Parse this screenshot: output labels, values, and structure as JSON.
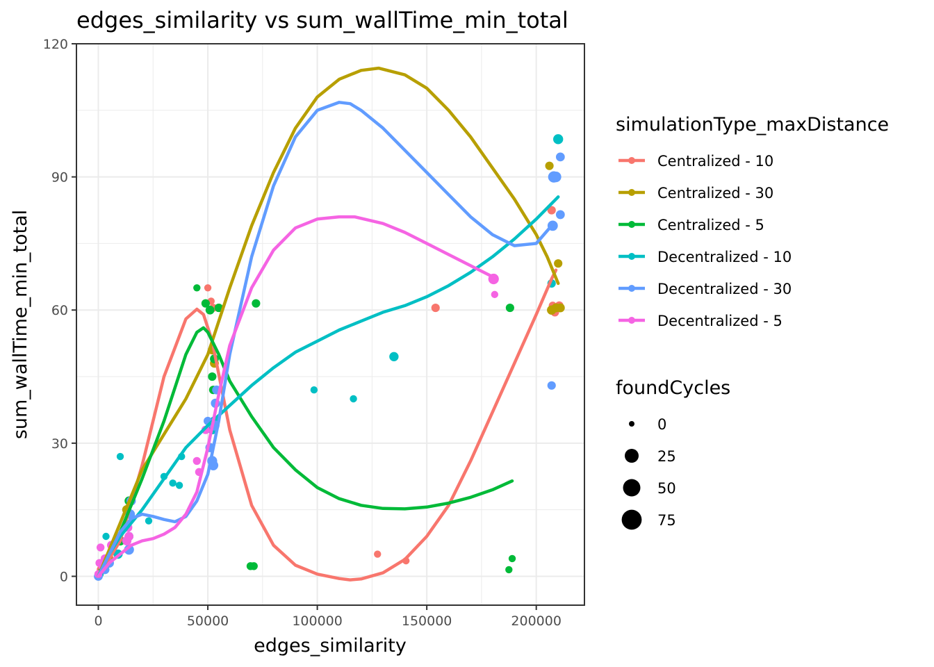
{
  "chart_data": {
    "type": "scatter",
    "title": "edges_similarity  vs  sum_wallTime_min_total",
    "xlabel": "edges_similarity",
    "ylabel": "sum_wallTime_min_total",
    "xlim": [
      -10000,
      222000
    ],
    "ylim": [
      -6.5,
      120
    ],
    "x_ticks": [
      0,
      50000,
      100000,
      150000,
      200000
    ],
    "x_tick_labels": [
      "0",
      "50000",
      "100000",
      "150000",
      "200000"
    ],
    "y_ticks": [
      0,
      30,
      60,
      90,
      120
    ],
    "y_tick_labels": [
      "0",
      "30",
      "60",
      "90",
      "120"
    ],
    "grid": true,
    "legend_position": "right",
    "color_legend": {
      "title": "simulationType_maxDistance",
      "entries": [
        {
          "name": "Centralized - 10",
          "color": "#F8766D"
        },
        {
          "name": "Centralized - 30",
          "color": "#B79F00"
        },
        {
          "name": "Centralized - 5",
          "color": "#00BA38"
        },
        {
          "name": "Decentralized - 10",
          "color": "#00BFC4"
        },
        {
          "name": "Decentralized - 30",
          "color": "#619CFF"
        },
        {
          "name": "Decentralized - 5",
          "color": "#F564E3"
        }
      ]
    },
    "size_legend": {
      "title": "foundCycles",
      "values": [
        0,
        25,
        50,
        75
      ],
      "labels": [
        "0",
        "25",
        "50",
        "75"
      ]
    },
    "series": [
      {
        "name": "Centralized - 10",
        "color": "#F8766D",
        "points": [
          [
            300,
            0.5,
            2
          ],
          [
            1200,
            1.5,
            3
          ],
          [
            3000,
            3,
            4
          ],
          [
            5000,
            4,
            4
          ],
          [
            50000,
            65,
            1
          ],
          [
            51500,
            62,
            1
          ],
          [
            52500,
            60.5,
            2
          ],
          [
            127500,
            5,
            1
          ],
          [
            140500,
            3.5,
            1
          ],
          [
            154000,
            60.5,
            3
          ],
          [
            207000,
            82.5,
            3
          ],
          [
            207500,
            61,
            2
          ],
          [
            208500,
            59.5,
            3
          ],
          [
            210500,
            61,
            3
          ]
        ],
        "smooth": [
          [
            0,
            0
          ],
          [
            10000,
            8
          ],
          [
            20000,
            25
          ],
          [
            30000,
            45
          ],
          [
            40000,
            58
          ],
          [
            45000,
            60.2
          ],
          [
            48000,
            59
          ],
          [
            52000,
            53
          ],
          [
            60000,
            33
          ],
          [
            70000,
            16
          ],
          [
            80000,
            7
          ],
          [
            90000,
            2.5
          ],
          [
            100000,
            0.5
          ],
          [
            110000,
            -0.5
          ],
          [
            115000,
            -0.8
          ],
          [
            120000,
            -0.6
          ],
          [
            130000,
            0.8
          ],
          [
            140000,
            3.8
          ],
          [
            150000,
            9
          ],
          [
            160000,
            16
          ],
          [
            170000,
            26
          ],
          [
            180000,
            37
          ],
          [
            190000,
            48
          ],
          [
            200000,
            59
          ],
          [
            207000,
            67
          ],
          [
            209000,
            69
          ]
        ]
      },
      {
        "name": "Centralized - 30",
        "color": "#B79F00",
        "points": [
          [
            500,
            0.5,
            3
          ],
          [
            2500,
            2,
            5
          ],
          [
            5000,
            3.5,
            4
          ],
          [
            13000,
            15,
            5
          ],
          [
            52000,
            51,
            4
          ],
          [
            53000,
            48,
            4
          ],
          [
            55000,
            60.5,
            3
          ],
          [
            206000,
            92.5,
            3
          ],
          [
            207000,
            60,
            5
          ],
          [
            209000,
            60.5,
            4
          ],
          [
            210000,
            70.5,
            3
          ],
          [
            211000,
            60.5,
            4
          ]
        ],
        "smooth": [
          [
            0,
            0
          ],
          [
            10000,
            12
          ],
          [
            20000,
            24
          ],
          [
            30000,
            32
          ],
          [
            40000,
            40
          ],
          [
            50000,
            50
          ],
          [
            60000,
            65
          ],
          [
            70000,
            79
          ],
          [
            80000,
            91
          ],
          [
            90000,
            101
          ],
          [
            100000,
            108
          ],
          [
            110000,
            112
          ],
          [
            120000,
            114
          ],
          [
            128000,
            114.5
          ],
          [
            140000,
            113
          ],
          [
            150000,
            110
          ],
          [
            160000,
            105
          ],
          [
            170000,
            99
          ],
          [
            180000,
            92
          ],
          [
            190000,
            85
          ],
          [
            200000,
            77
          ],
          [
            205000,
            72
          ],
          [
            210000,
            66
          ]
        ]
      },
      {
        "name": "Centralized - 5",
        "color": "#00BA38",
        "points": [
          [
            500,
            0.5,
            2
          ],
          [
            2000,
            1.5,
            3
          ],
          [
            5000,
            3,
            4
          ],
          [
            10000,
            8,
            5
          ],
          [
            14000,
            17,
            4
          ],
          [
            45000,
            65,
            1
          ],
          [
            49000,
            61.5,
            3
          ],
          [
            51000,
            60,
            4
          ],
          [
            52000,
            45,
            3
          ],
          [
            52500,
            42,
            3
          ],
          [
            53000,
            49,
            4
          ],
          [
            55000,
            60.5,
            3
          ],
          [
            72000,
            61.5,
            3
          ],
          [
            69500,
            2.3,
            2
          ],
          [
            71000,
            2.3,
            2
          ],
          [
            187500,
            1.5,
            1
          ],
          [
            189000,
            4,
            1
          ],
          [
            188000,
            60.5,
            3
          ]
        ],
        "smooth": [
          [
            0,
            0
          ],
          [
            10000,
            10
          ],
          [
            20000,
            22
          ],
          [
            30000,
            35
          ],
          [
            40000,
            50
          ],
          [
            45000,
            55
          ],
          [
            48000,
            56
          ],
          [
            50000,
            55
          ],
          [
            55000,
            50
          ],
          [
            60000,
            44
          ],
          [
            70000,
            36
          ],
          [
            80000,
            29
          ],
          [
            90000,
            24
          ],
          [
            100000,
            20
          ],
          [
            110000,
            17.5
          ],
          [
            120000,
            16
          ],
          [
            130000,
            15.3
          ],
          [
            140000,
            15.2
          ],
          [
            150000,
            15.6
          ],
          [
            160000,
            16.5
          ],
          [
            170000,
            17.8
          ],
          [
            180000,
            19.5
          ],
          [
            189000,
            21.5
          ]
        ]
      },
      {
        "name": "Decentralized - 10",
        "color": "#00BFC4",
        "points": [
          [
            500,
            0.5,
            3
          ],
          [
            3000,
            1.5,
            4
          ],
          [
            3500,
            9,
            1
          ],
          [
            9000,
            5,
            5
          ],
          [
            10000,
            27,
            1
          ],
          [
            14000,
            9,
            4
          ],
          [
            23000,
            12.5,
            1
          ],
          [
            30000,
            22.5,
            1
          ],
          [
            34000,
            21,
            1
          ],
          [
            37000,
            20.5,
            1
          ],
          [
            38000,
            27,
            1
          ],
          [
            52000,
            33,
            4
          ],
          [
            53000,
            35,
            5
          ],
          [
            98500,
            42,
            1
          ],
          [
            116500,
            40,
            1
          ],
          [
            135000,
            49.5,
            5
          ],
          [
            207000,
            66,
            3
          ],
          [
            210000,
            98.5,
            7
          ]
        ],
        "smooth": [
          [
            0,
            0
          ],
          [
            5000,
            5
          ],
          [
            10000,
            9
          ],
          [
            15000,
            12
          ],
          [
            20000,
            15
          ],
          [
            30000,
            22
          ],
          [
            40000,
            29
          ],
          [
            50000,
            34
          ],
          [
            60000,
            38.5
          ],
          [
            70000,
            43
          ],
          [
            80000,
            47
          ],
          [
            90000,
            50.5
          ],
          [
            100000,
            53
          ],
          [
            110000,
            55.5
          ],
          [
            120000,
            57.5
          ],
          [
            130000,
            59.5
          ],
          [
            140000,
            61
          ],
          [
            150000,
            63
          ],
          [
            160000,
            65.5
          ],
          [
            170000,
            68.5
          ],
          [
            180000,
            72
          ],
          [
            190000,
            76
          ],
          [
            200000,
            80.5
          ],
          [
            210000,
            85.5
          ]
        ]
      },
      {
        "name": "Decentralized - 30",
        "color": "#619CFF",
        "points": [
          [
            0,
            0,
            4
          ],
          [
            3000,
            1.5,
            4
          ],
          [
            5000,
            3,
            5
          ],
          [
            14000,
            6,
            7
          ],
          [
            14500,
            14,
            6
          ],
          [
            15000,
            17,
            5
          ],
          [
            50000,
            35,
            3
          ],
          [
            51000,
            29,
            5
          ],
          [
            52000,
            26,
            7
          ],
          [
            52500,
            25,
            7
          ],
          [
            53000,
            34,
            8
          ],
          [
            53500,
            39,
            5
          ],
          [
            54000,
            42,
            4
          ],
          [
            207000,
            43,
            3
          ],
          [
            207500,
            79,
            8
          ],
          [
            208000,
            90,
            12
          ],
          [
            209000,
            90,
            9
          ],
          [
            211000,
            81.5,
            4
          ],
          [
            211000,
            94.5,
            4
          ]
        ],
        "smooth": [
          [
            0,
            0
          ],
          [
            5000,
            5
          ],
          [
            10000,
            10
          ],
          [
            15000,
            13
          ],
          [
            20000,
            14
          ],
          [
            25000,
            13.5
          ],
          [
            30000,
            12.8
          ],
          [
            35000,
            12.3
          ],
          [
            40000,
            13.5
          ],
          [
            45000,
            17
          ],
          [
            50000,
            23
          ],
          [
            55000,
            35
          ],
          [
            60000,
            50
          ],
          [
            70000,
            72
          ],
          [
            80000,
            88
          ],
          [
            90000,
            99
          ],
          [
            100000,
            105
          ],
          [
            110000,
            106.8
          ],
          [
            115000,
            106.5
          ],
          [
            120000,
            105
          ],
          [
            130000,
            101
          ],
          [
            140000,
            96
          ],
          [
            150000,
            91
          ],
          [
            160000,
            86
          ],
          [
            170000,
            81
          ],
          [
            180000,
            77
          ],
          [
            190000,
            74.5
          ],
          [
            200000,
            75
          ],
          [
            207000,
            79
          ]
        ]
      },
      {
        "name": "Decentralized - 5",
        "color": "#F564E3",
        "points": [
          [
            0,
            0.5,
            2
          ],
          [
            500,
            3,
            2
          ],
          [
            1000,
            6.5,
            2
          ],
          [
            2000,
            2,
            2
          ],
          [
            3000,
            4,
            3
          ],
          [
            6000,
            7,
            4
          ],
          [
            13000,
            8,
            5
          ],
          [
            13500,
            11,
            4
          ],
          [
            14000,
            9,
            4
          ],
          [
            45000,
            26,
            2
          ],
          [
            46000,
            23.5,
            2
          ],
          [
            49000,
            33,
            3
          ],
          [
            181000,
            63.5,
            1
          ],
          [
            180500,
            67,
            9
          ]
        ],
        "smooth": [
          [
            0,
            0
          ],
          [
            5000,
            3
          ],
          [
            10000,
            5
          ],
          [
            15000,
            7
          ],
          [
            20000,
            8
          ],
          [
            25000,
            8.5
          ],
          [
            30000,
            9.5
          ],
          [
            35000,
            11
          ],
          [
            40000,
            14
          ],
          [
            45000,
            19
          ],
          [
            50000,
            29
          ],
          [
            55000,
            41
          ],
          [
            60000,
            52
          ],
          [
            70000,
            65
          ],
          [
            80000,
            73.5
          ],
          [
            90000,
            78.5
          ],
          [
            100000,
            80.5
          ],
          [
            110000,
            81
          ],
          [
            117000,
            81
          ],
          [
            130000,
            79.5
          ],
          [
            140000,
            77.5
          ],
          [
            150000,
            75
          ],
          [
            160000,
            72.5
          ],
          [
            170000,
            70
          ],
          [
            180000,
            67.5
          ]
        ]
      }
    ]
  }
}
